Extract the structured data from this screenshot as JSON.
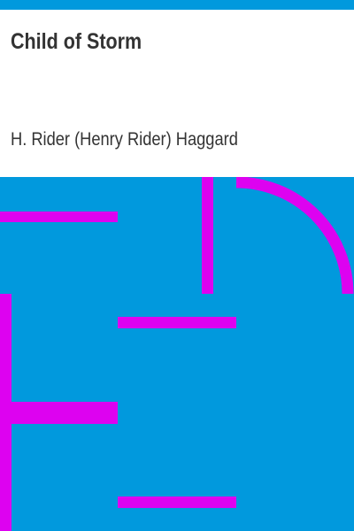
{
  "book": {
    "title": "Child of Storm",
    "author": "H. Rider (Henry Rider) Haggard"
  },
  "colors": {
    "background": "#ffffff",
    "stripe": "#0199dd",
    "art_background": "#0199dd",
    "art_lines": "#dd02f0",
    "text": "#333333"
  }
}
